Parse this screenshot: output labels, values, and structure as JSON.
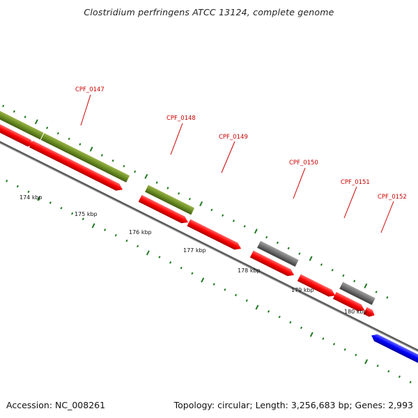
{
  "title": "Clostridium perfringens ATCC 13124, complete genome",
  "footer": {
    "accession": "Accession: NC_008261",
    "stats": "Topology: circular; Length: 3,256,683 bp; Genes: 2,993"
  },
  "colors": {
    "cds_strand_red": "#ff0000",
    "cog_green": "#6b8e23",
    "cog_grey": "#707070",
    "reverse_blue": "#0000ff",
    "label_red": "#cc0000",
    "ticks_green": "#006400",
    "backbone_grey": "#808080"
  },
  "kbp_labels": [
    "174 kbp",
    "175 kbp",
    "176 kbp",
    "177 kbp",
    "178 kbp",
    "179 kbp",
    "180 kbp"
  ],
  "gene_labels": [
    "CPF_0147",
    "CPF_0148",
    "CPF_0149",
    "CPF_0150",
    "CPF_0151",
    "CPF_0152"
  ]
}
